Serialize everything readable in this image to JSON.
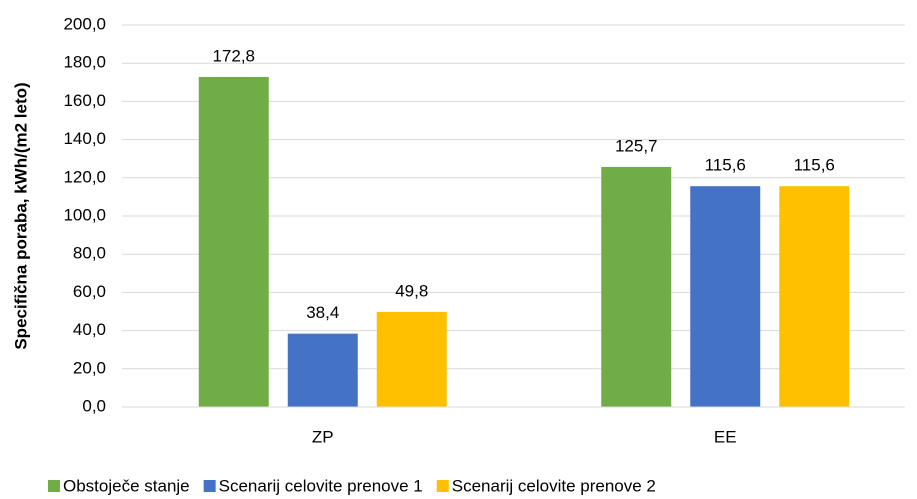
{
  "chart_data": {
    "type": "bar",
    "y_label": "Specifična poraba, kWh/(m2 leto)",
    "categories": [
      "ZP",
      "EE"
    ],
    "series": [
      {
        "name": "Obstoječe stanje",
        "color": "#70ad47",
        "values": [
          172.8,
          125.7
        ],
        "value_labels": [
          "172,8",
          "125,7"
        ]
      },
      {
        "name": "Scenarij celovite prenove 1",
        "color": "#4472c4",
        "values": [
          38.4,
          115.6
        ],
        "value_labels": [
          "38,4",
          "115,6"
        ]
      },
      {
        "name": "Scenarij celovite prenove 2",
        "color": "#ffc000",
        "values": [
          49.8,
          115.6
        ],
        "value_labels": [
          "49,8",
          "115,6"
        ]
      }
    ],
    "ylim": [
      0,
      200
    ],
    "yticks": [
      {
        "value": 0,
        "label": "0,0"
      },
      {
        "value": 20,
        "label": "20,0"
      },
      {
        "value": 40,
        "label": "40,0"
      },
      {
        "value": 60,
        "label": "60,0"
      },
      {
        "value": 80,
        "label": "80,0"
      },
      {
        "value": 100,
        "label": "100,0"
      },
      {
        "value": 120,
        "label": "120,0"
      },
      {
        "value": 140,
        "label": "140,0"
      },
      {
        "value": 160,
        "label": "160,0"
      },
      {
        "value": 180,
        "label": "180,0"
      },
      {
        "value": 200,
        "label": "200,0"
      }
    ],
    "grid": true,
    "legend": "bottom"
  }
}
